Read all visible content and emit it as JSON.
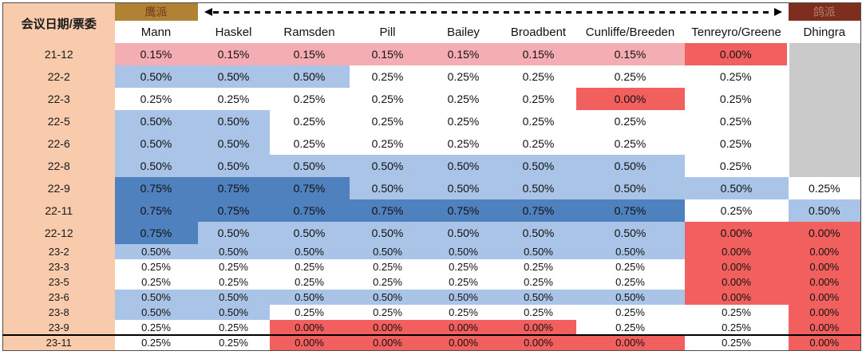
{
  "corner_label": "会议日期/票委",
  "hawk_label": "鹰派",
  "dove_label": "鸽派",
  "highlight_column": "Bailey",
  "colors": {
    "label_column_bg": "#F8CBAD",
    "hawk_box_bg": "#B08234",
    "hawk_box_text": "#6F371B",
    "dove_box_bg": "#7F2D1E",
    "dove_box_text": "#B5826E",
    "bailey_header_bg": "#FFC000",
    "pink": "#F5ADB4",
    "red": "#F1605E",
    "blue": "#A9C4E6",
    "darkblue": "#4E81BD",
    "white": "#FFFFFF",
    "gray": "#CACACA",
    "arrow": "#000000"
  },
  "chart_data": {
    "type": "heatmap",
    "columns": [
      "Mann",
      "Haskel",
      "Ramsden",
      "Pill",
      "Bailey",
      "Broadbent",
      "Cunliffe/Breeden",
      "Tenreyro/Greene",
      "Dhingra"
    ],
    "row_header": "会议日期/票委",
    "axis_annotation": {
      "left": "鹰派",
      "right": "鸽派",
      "style": "double-headed dashed arrow"
    },
    "rows": [
      {
        "date": "21-12",
        "compact": false,
        "top_border": false,
        "cells": [
          [
            "0.15%",
            "pink"
          ],
          [
            "0.15%",
            "pink"
          ],
          [
            "0.15%",
            "pink"
          ],
          [
            "0.15%",
            "pink"
          ],
          [
            "0.15%",
            "pink"
          ],
          [
            "0.15%",
            "pink"
          ],
          [
            "0.15%",
            "pink"
          ],
          [
            "0.00%",
            "red"
          ],
          [
            "",
            "gray"
          ]
        ]
      },
      {
        "date": "22-2",
        "compact": false,
        "top_border": false,
        "cells": [
          [
            "0.50%",
            "blue"
          ],
          [
            "0.50%",
            "blue"
          ],
          [
            "0.50%",
            "blue"
          ],
          [
            "0.25%",
            "white"
          ],
          [
            "0.25%",
            "white"
          ],
          [
            "0.25%",
            "white"
          ],
          [
            "0.25%",
            "white"
          ],
          [
            "0.25%",
            "white"
          ],
          [
            "",
            "gray"
          ]
        ]
      },
      {
        "date": "22-3",
        "compact": false,
        "top_border": false,
        "cells": [
          [
            "0.25%",
            "white"
          ],
          [
            "0.25%",
            "white"
          ],
          [
            "0.25%",
            "white"
          ],
          [
            "0.25%",
            "white"
          ],
          [
            "0.25%",
            "white"
          ],
          [
            "0.25%",
            "white"
          ],
          [
            "0.00%",
            "red"
          ],
          [
            "0.25%",
            "white"
          ],
          [
            "",
            "gray"
          ]
        ]
      },
      {
        "date": "22-5",
        "compact": false,
        "top_border": false,
        "cells": [
          [
            "0.50%",
            "blue"
          ],
          [
            "0.50%",
            "blue"
          ],
          [
            "0.25%",
            "white"
          ],
          [
            "0.25%",
            "white"
          ],
          [
            "0.25%",
            "white"
          ],
          [
            "0.25%",
            "white"
          ],
          [
            "0.25%",
            "white"
          ],
          [
            "0.25%",
            "white"
          ],
          [
            "",
            "gray"
          ]
        ]
      },
      {
        "date": "22-6",
        "compact": false,
        "top_border": false,
        "cells": [
          [
            "0.50%",
            "blue"
          ],
          [
            "0.50%",
            "blue"
          ],
          [
            "0.25%",
            "white"
          ],
          [
            "0.25%",
            "white"
          ],
          [
            "0.25%",
            "white"
          ],
          [
            "0.25%",
            "white"
          ],
          [
            "0.25%",
            "white"
          ],
          [
            "0.25%",
            "white"
          ],
          [
            "",
            "gray"
          ]
        ]
      },
      {
        "date": "22-8",
        "compact": false,
        "top_border": false,
        "cells": [
          [
            "0.50%",
            "blue"
          ],
          [
            "0.50%",
            "blue"
          ],
          [
            "0.50%",
            "blue"
          ],
          [
            "0.50%",
            "blue"
          ],
          [
            "0.50%",
            "blue"
          ],
          [
            "0.50%",
            "blue"
          ],
          [
            "0.50%",
            "blue"
          ],
          [
            "0.25%",
            "white"
          ],
          [
            "",
            "gray"
          ]
        ]
      },
      {
        "date": "22-9",
        "compact": false,
        "top_border": false,
        "cells": [
          [
            "0.75%",
            "darkblue"
          ],
          [
            "0.75%",
            "darkblue"
          ],
          [
            "0.75%",
            "darkblue"
          ],
          [
            "0.50%",
            "blue"
          ],
          [
            "0.50%",
            "blue"
          ],
          [
            "0.50%",
            "blue"
          ],
          [
            "0.50%",
            "blue"
          ],
          [
            "0.50%",
            "blue"
          ],
          [
            "0.25%",
            "white"
          ]
        ]
      },
      {
        "date": "22-11",
        "compact": false,
        "top_border": false,
        "cells": [
          [
            "0.75%",
            "darkblue"
          ],
          [
            "0.75%",
            "darkblue"
          ],
          [
            "0.75%",
            "darkblue"
          ],
          [
            "0.75%",
            "darkblue"
          ],
          [
            "0.75%",
            "darkblue"
          ],
          [
            "0.75%",
            "darkblue"
          ],
          [
            "0.75%",
            "darkblue"
          ],
          [
            "0.25%",
            "white"
          ],
          [
            "0.50%",
            "blue"
          ]
        ]
      },
      {
        "date": "22-12",
        "compact": false,
        "top_border": false,
        "cells": [
          [
            "0.75%",
            "darkblue"
          ],
          [
            "0.50%",
            "blue"
          ],
          [
            "0.50%",
            "blue"
          ],
          [
            "0.50%",
            "blue"
          ],
          [
            "0.50%",
            "blue"
          ],
          [
            "0.50%",
            "blue"
          ],
          [
            "0.50%",
            "blue"
          ],
          [
            "0.00%",
            "red"
          ],
          [
            "0.00%",
            "red"
          ]
        ]
      },
      {
        "date": "23-2",
        "compact": true,
        "top_border": false,
        "cells": [
          [
            "0.50%",
            "blue"
          ],
          [
            "0.50%",
            "blue"
          ],
          [
            "0.50%",
            "blue"
          ],
          [
            "0.50%",
            "blue"
          ],
          [
            "0.50%",
            "blue"
          ],
          [
            "0.50%",
            "blue"
          ],
          [
            "0.50%",
            "blue"
          ],
          [
            "0.00%",
            "red"
          ],
          [
            "0.00%",
            "red"
          ]
        ]
      },
      {
        "date": "23-3",
        "compact": true,
        "top_border": false,
        "cells": [
          [
            "0.25%",
            "white"
          ],
          [
            "0.25%",
            "white"
          ],
          [
            "0.25%",
            "white"
          ],
          [
            "0.25%",
            "white"
          ],
          [
            "0.25%",
            "white"
          ],
          [
            "0.25%",
            "white"
          ],
          [
            "0.25%",
            "white"
          ],
          [
            "0.00%",
            "red"
          ],
          [
            "0.00%",
            "red"
          ]
        ]
      },
      {
        "date": "23-5",
        "compact": true,
        "top_border": false,
        "cells": [
          [
            "0.25%",
            "white"
          ],
          [
            "0.25%",
            "white"
          ],
          [
            "0.25%",
            "white"
          ],
          [
            "0.25%",
            "white"
          ],
          [
            "0.25%",
            "white"
          ],
          [
            "0.25%",
            "white"
          ],
          [
            "0.25%",
            "white"
          ],
          [
            "0.00%",
            "red"
          ],
          [
            "0.00%",
            "red"
          ]
        ]
      },
      {
        "date": "23-6",
        "compact": true,
        "top_border": false,
        "cells": [
          [
            "0.50%",
            "blue"
          ],
          [
            "0.50%",
            "blue"
          ],
          [
            "0.50%",
            "blue"
          ],
          [
            "0.50%",
            "blue"
          ],
          [
            "0.50%",
            "blue"
          ],
          [
            "0.50%",
            "blue"
          ],
          [
            "0.50%",
            "blue"
          ],
          [
            "0.00%",
            "red"
          ],
          [
            "0.00%",
            "red"
          ]
        ]
      },
      {
        "date": "23-8",
        "compact": true,
        "top_border": false,
        "cells": [
          [
            "0.50%",
            "blue"
          ],
          [
            "0.50%",
            "blue"
          ],
          [
            "0.25%",
            "white"
          ],
          [
            "0.25%",
            "white"
          ],
          [
            "0.25%",
            "white"
          ],
          [
            "0.25%",
            "white"
          ],
          [
            "0.25%",
            "white"
          ],
          [
            "0.25%",
            "white"
          ],
          [
            "0.00%",
            "red"
          ]
        ]
      },
      {
        "date": "23-9",
        "compact": true,
        "top_border": false,
        "cells": [
          [
            "0.25%",
            "white"
          ],
          [
            "0.25%",
            "white"
          ],
          [
            "0.00%",
            "red"
          ],
          [
            "0.00%",
            "red"
          ],
          [
            "0.00%",
            "red"
          ],
          [
            "0.00%",
            "red"
          ],
          [
            "0.25%",
            "white"
          ],
          [
            "0.25%",
            "white"
          ],
          [
            "0.00%",
            "red"
          ]
        ]
      },
      {
        "date": "23-11",
        "compact": true,
        "top_border": true,
        "cells": [
          [
            "0.25%",
            "white"
          ],
          [
            "0.25%",
            "white"
          ],
          [
            "0.00%",
            "red"
          ],
          [
            "0.00%",
            "red"
          ],
          [
            "0.00%",
            "red"
          ],
          [
            "0.00%",
            "red"
          ],
          [
            "0.00%",
            "red"
          ],
          [
            "0.25%",
            "white"
          ],
          [
            "0.00%",
            "red"
          ]
        ]
      }
    ]
  }
}
